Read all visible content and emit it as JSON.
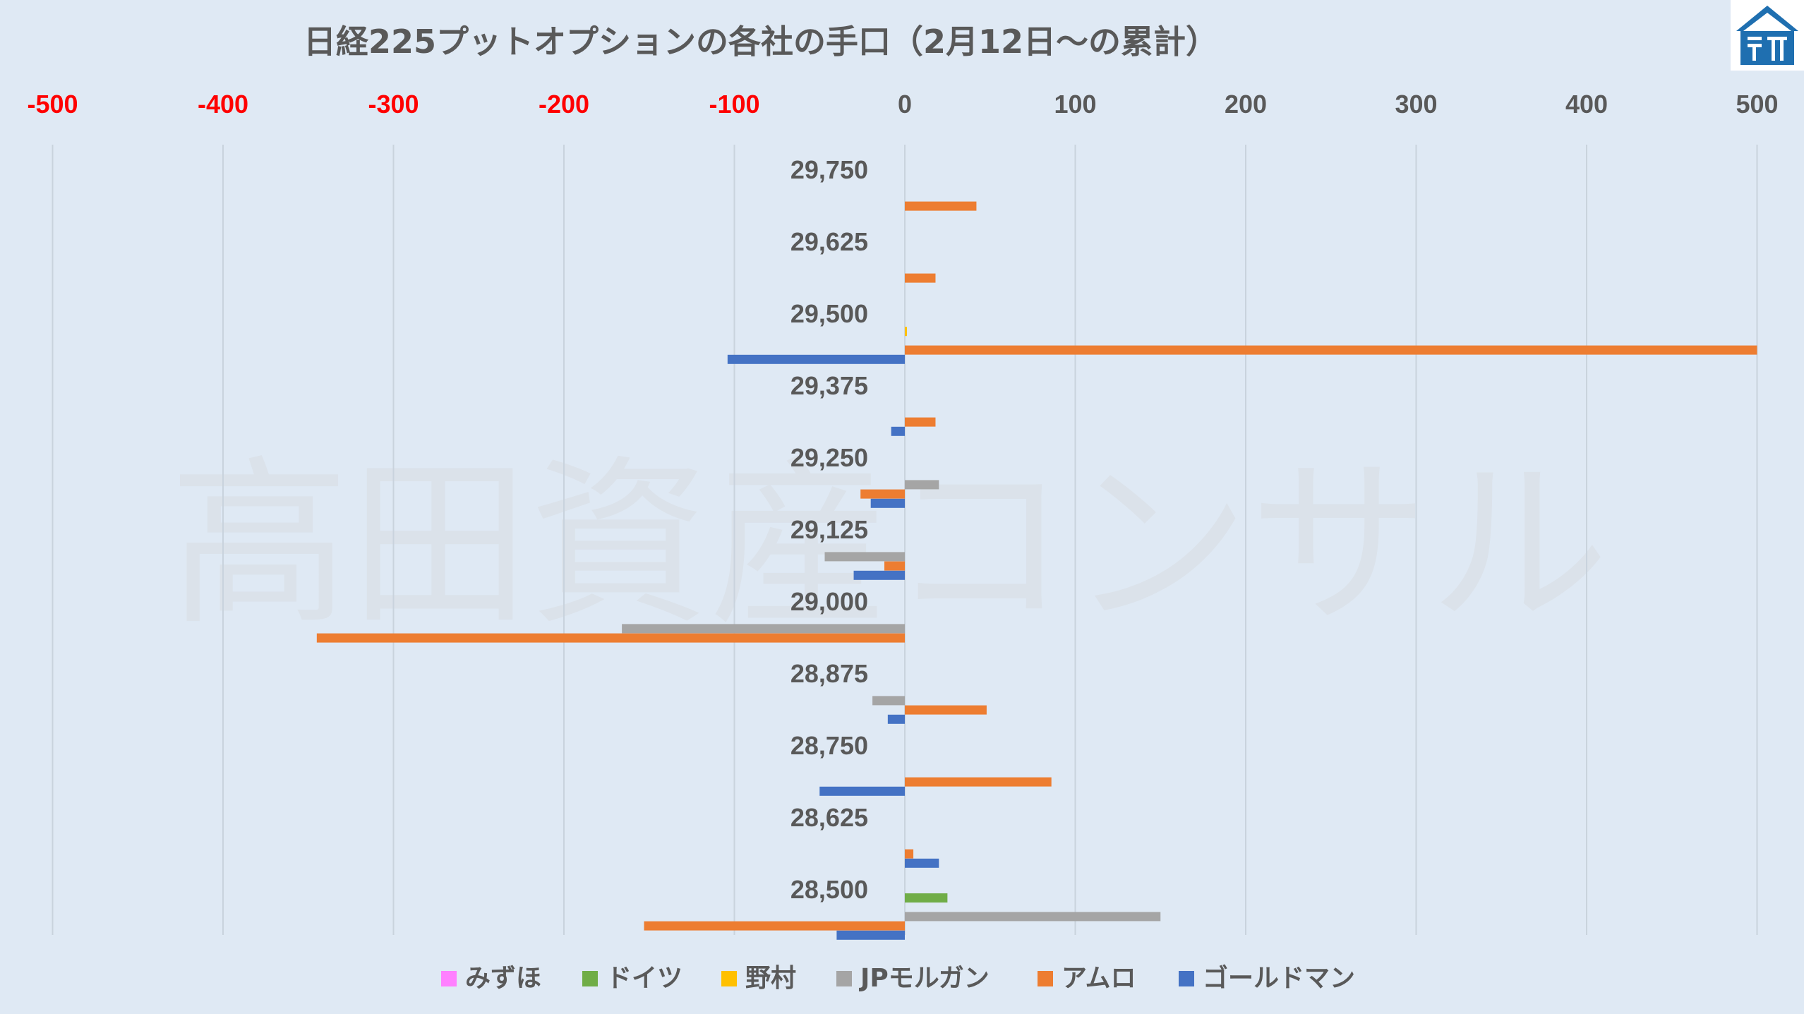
{
  "title": "日経225プットオプションの各社の手口（2月12日〜の累計）",
  "watermark": "高田資産コンサル",
  "logo_icon": "company-house-logo-icon",
  "colors": {
    "background": "#dfe9f4",
    "negative_tick": "#ff0000",
    "positive_tick": "#595959",
    "gridline": "#c9d3dd"
  },
  "chart_data": {
    "type": "bar",
    "orientation": "horizontal",
    "title": "日経225プットオプションの各社の手口（2月12日〜の累計）",
    "xlim": [
      -500,
      500
    ],
    "x_ticks": [
      "-500",
      "-400",
      "-300",
      "-200",
      "-100",
      "0",
      "100",
      "200",
      "300",
      "400",
      "500"
    ],
    "grid": true,
    "axis_position": "top",
    "legend_position": "bottom",
    "categories": [
      "29,750",
      "29,625",
      "29,500",
      "29,375",
      "29,250",
      "29,125",
      "29,000",
      "28,875",
      "28,750",
      "28,625",
      "28,500"
    ],
    "series": [
      {
        "name": "みずほ",
        "color": "#ff80ff",
        "values": [
          0,
          0,
          0,
          0,
          0,
          0,
          0,
          0,
          0,
          0,
          0
        ]
      },
      {
        "name": "ドイツ",
        "color": "#70ad47",
        "values": [
          0,
          0,
          0,
          0,
          0,
          0,
          0,
          0,
          0,
          0,
          25
        ]
      },
      {
        "name": "野村",
        "color": "#ffc000",
        "values": [
          0,
          0,
          1,
          0,
          0,
          0,
          0,
          0,
          0,
          0,
          0
        ]
      },
      {
        "name": "JPモルガン",
        "color": "#a5a5a5",
        "values": [
          0,
          0,
          0,
          0,
          20,
          -47,
          -166,
          -19,
          0,
          0,
          150
        ]
      },
      {
        "name": "アムロ",
        "color": "#ed7d31",
        "values": [
          42,
          18,
          500,
          18,
          -26,
          -12,
          -345,
          48,
          86,
          5,
          -153
        ]
      },
      {
        "name": "ゴールドマン",
        "color": "#4472c4",
        "values": [
          0,
          0,
          -104,
          -8,
          -20,
          -30,
          0,
          -10,
          -50,
          20,
          -40
        ]
      }
    ]
  }
}
